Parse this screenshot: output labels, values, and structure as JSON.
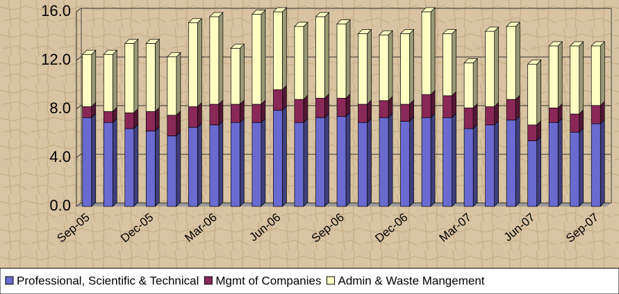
{
  "chart_data": {
    "type": "bar",
    "stacked": true,
    "categories": [
      "Sep-05",
      null,
      null,
      "Dec-05",
      null,
      null,
      "Mar-06",
      null,
      null,
      "Jun-06",
      null,
      null,
      "Sep-06",
      null,
      null,
      "Dec-06",
      null,
      null,
      "Mar-07",
      null,
      null,
      "Jun-07",
      null,
      null,
      "Sep-07"
    ],
    "series": [
      {
        "name": "Professional, Scientific & Technical",
        "color": "#6a6ad0",
        "values": [
          7.3,
          6.9,
          6.4,
          6.2,
          5.8,
          6.5,
          6.7,
          6.9,
          6.9,
          7.9,
          6.9,
          7.3,
          7.4,
          6.9,
          7.3,
          7.0,
          7.3,
          7.3,
          6.4,
          6.7,
          7.1,
          5.4,
          6.9,
          6.1,
          6.8
        ]
      },
      {
        "name": "Mgmt of Companies",
        "color": "#8a2858",
        "values": [
          0.9,
          0.9,
          1.3,
          1.6,
          1.7,
          1.7,
          1.7,
          1.5,
          1.5,
          1.7,
          1.9,
          1.6,
          1.5,
          1.5,
          1.4,
          1.4,
          1.9,
          1.8,
          1.7,
          1.5,
          1.7,
          1.3,
          1.2,
          1.5,
          1.5
        ]
      },
      {
        "name": "Admin & Waste Mangement",
        "color": "#ffffc4",
        "values": [
          4.3,
          4.7,
          5.7,
          5.6,
          4.8,
          6.9,
          7.2,
          4.6,
          7.4,
          6.4,
          6.0,
          6.7,
          6.1,
          5.8,
          5.4,
          5.8,
          6.8,
          5.1,
          3.7,
          6.2,
          6.0,
          5.0,
          5.1,
          5.6,
          4.9
        ]
      }
    ],
    "ylim": [
      0,
      16
    ],
    "yticks": [
      {
        "value": 0,
        "label": "0.0"
      },
      {
        "value": 4,
        "label": "4.0"
      },
      {
        "value": 8,
        "label": "8.0"
      },
      {
        "value": 12,
        "label": "12.0"
      },
      {
        "value": 16,
        "label": "16.0"
      }
    ],
    "grid": true,
    "legend": "bottom"
  }
}
